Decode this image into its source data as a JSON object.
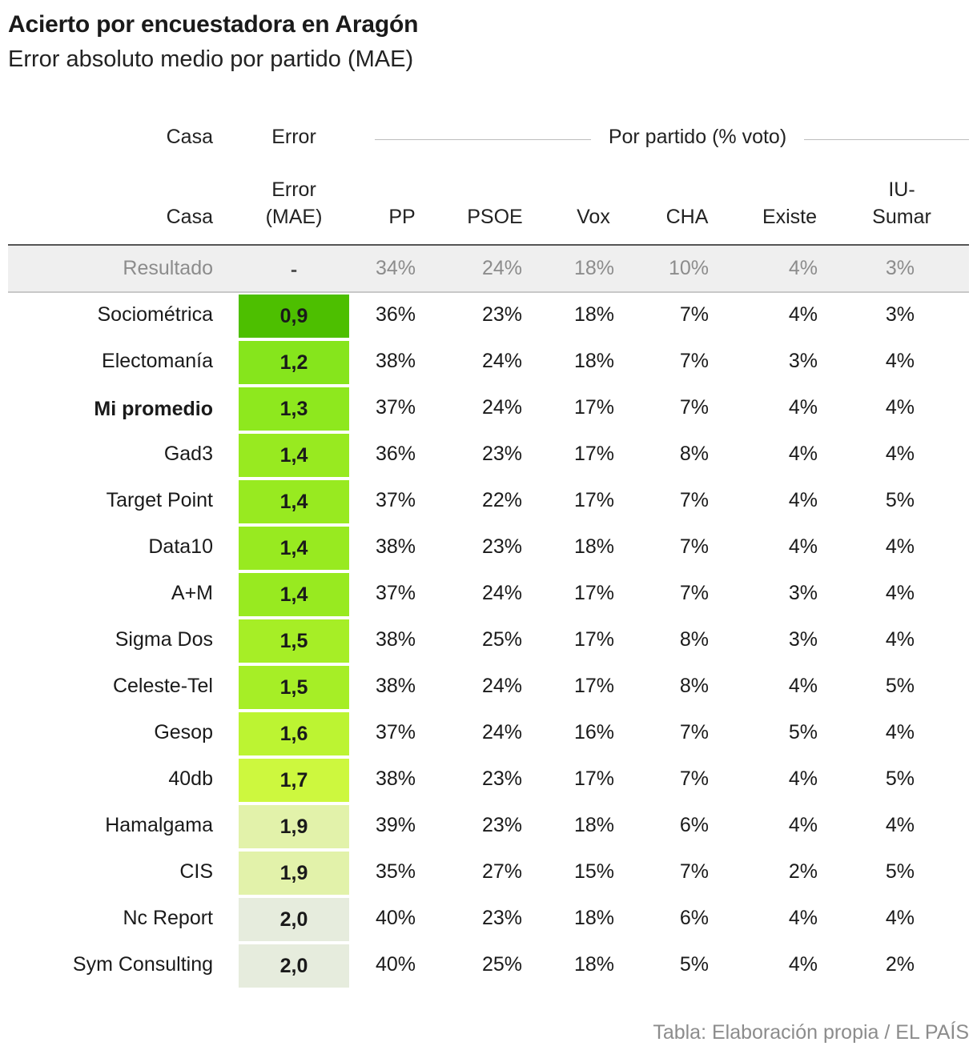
{
  "title": "Acierto por encuestadora en Aragón",
  "subtitle": "Error absoluto medio por partido (MAE)",
  "spanner": {
    "casa": "Casa",
    "error": "Error",
    "por_partido": "Por partido (% voto)"
  },
  "columns": {
    "casa": "Casa",
    "mae_line1": "Error",
    "mae_line2": "(MAE)",
    "parties": [
      "PP",
      "PSOE",
      "Vox",
      "CHA",
      "Existe",
      "IU-\nSumar"
    ]
  },
  "result_row": {
    "label": "Resultado",
    "mae": "-",
    "values": [
      "34%",
      "24%",
      "18%",
      "10%",
      "4%",
      "3%"
    ]
  },
  "source": "Tabla: Elaboración propia / EL PAÍS",
  "colors": {
    "best": "#4dbf00",
    "worst": "#e6ecdd"
  },
  "chart_data": {
    "type": "table",
    "title": "Acierto por encuestadora en Aragón",
    "subtitle": "Error absoluto medio por partido (MAE)",
    "columns": [
      "Casa",
      "Error (MAE)",
      "PP",
      "PSOE",
      "Vox",
      "CHA",
      "Existe",
      "IU-Sumar"
    ],
    "rows": [
      {
        "casa": "Sociométrica",
        "mae": "0,9",
        "mae_value": 0.9,
        "color": "#4dbf00",
        "values": [
          "36%",
          "23%",
          "18%",
          "7%",
          "4%",
          "3%"
        ]
      },
      {
        "casa": "Electomanía",
        "mae": "1,2",
        "mae_value": 1.2,
        "color": "#86e51c",
        "values": [
          "38%",
          "24%",
          "18%",
          "7%",
          "3%",
          "4%"
        ]
      },
      {
        "casa": "Mi promedio",
        "mae": "1,3",
        "mae_value": 1.3,
        "color": "#8ee81e",
        "bold": true,
        "values": [
          "37%",
          "24%",
          "17%",
          "7%",
          "4%",
          "4%"
        ]
      },
      {
        "casa": "Gad3",
        "mae": "1,4",
        "mae_value": 1.4,
        "color": "#98ea20",
        "values": [
          "36%",
          "23%",
          "17%",
          "8%",
          "4%",
          "4%"
        ]
      },
      {
        "casa": "Target Point",
        "mae": "1,4",
        "mae_value": 1.4,
        "color": "#98ea20",
        "values": [
          "37%",
          "22%",
          "17%",
          "7%",
          "4%",
          "5%"
        ]
      },
      {
        "casa": "Data10",
        "mae": "1,4",
        "mae_value": 1.4,
        "color": "#98ea20",
        "values": [
          "38%",
          "23%",
          "18%",
          "7%",
          "4%",
          "4%"
        ]
      },
      {
        "casa": "A+M",
        "mae": "1,4",
        "mae_value": 1.4,
        "color": "#98ea20",
        "values": [
          "37%",
          "24%",
          "17%",
          "7%",
          "3%",
          "4%"
        ]
      },
      {
        "casa": "Sigma Dos",
        "mae": "1,5",
        "mae_value": 1.5,
        "color": "#a6ee26",
        "values": [
          "38%",
          "25%",
          "17%",
          "8%",
          "3%",
          "4%"
        ]
      },
      {
        "casa": "Celeste-Tel",
        "mae": "1,5",
        "mae_value": 1.5,
        "color": "#a6ee26",
        "values": [
          "38%",
          "24%",
          "17%",
          "8%",
          "4%",
          "5%"
        ]
      },
      {
        "casa": "Gesop",
        "mae": "1,6",
        "mae_value": 1.6,
        "color": "#bcf432",
        "values": [
          "37%",
          "24%",
          "16%",
          "7%",
          "5%",
          "4%"
        ]
      },
      {
        "casa": "40db",
        "mae": "1,7",
        "mae_value": 1.7,
        "color": "#cdf83e",
        "values": [
          "38%",
          "23%",
          "17%",
          "7%",
          "4%",
          "5%"
        ]
      },
      {
        "casa": "Hamalgama",
        "mae": "1,9",
        "mae_value": 1.9,
        "color": "#e2f2aa",
        "values": [
          "39%",
          "23%",
          "18%",
          "6%",
          "4%",
          "4%"
        ]
      },
      {
        "casa": "CIS",
        "mae": "1,9",
        "mae_value": 1.9,
        "color": "#e2f2aa",
        "values": [
          "35%",
          "27%",
          "15%",
          "7%",
          "2%",
          "5%"
        ]
      },
      {
        "casa": "Nc Report",
        "mae": "2,0",
        "mae_value": 2.0,
        "color": "#e6ecdd",
        "values": [
          "40%",
          "23%",
          "18%",
          "6%",
          "4%",
          "4%"
        ]
      },
      {
        "casa": "Sym Consulting",
        "mae": "2,0",
        "mae_value": 2.0,
        "color": "#e6ecdd",
        "values": [
          "40%",
          "25%",
          "18%",
          "5%",
          "4%",
          "2%"
        ]
      }
    ]
  }
}
